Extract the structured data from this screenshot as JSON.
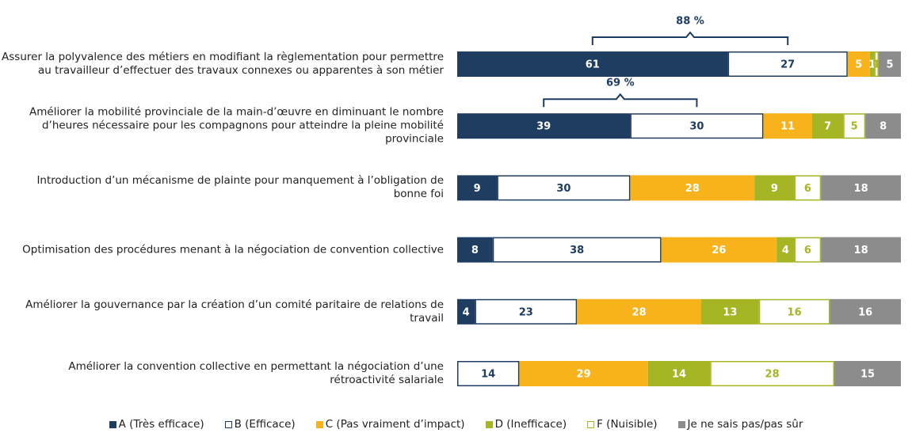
{
  "chart_data": {
    "type": "stacked_bar_horizontal",
    "categories": [
      "Assurer la polyvalence des métiers en modifiant la règlementation pour permettre au travailleur d’effectuer des travaux connexes ou apparentes à son métier",
      "Améliorer la mobilité provinciale de la main-d’œuvre en diminuant le nombre d’heures nécessaire pour les compagnons pour atteindre la pleine mobilité provinciale",
      "Introduction d’un mécanisme de plainte pour manquement à l’obligation de bonne foi",
      "Optimisation des procédures menant à la négociation de convention collective",
      "Améliorer la gouvernance par la création d’un comité paritaire de relations de travail",
      "Améliorer la convention collective en permettant la négociation d’une rétroactivité salariale"
    ],
    "series": [
      {
        "name": "A (Très efficace)",
        "color": "#1f3d61",
        "values": [
          61,
          39,
          9,
          8,
          4,
          null
        ]
      },
      {
        "name": "B (Efficace)",
        "color": "#ffffff",
        "values": [
          27,
          30,
          30,
          38,
          23,
          14
        ]
      },
      {
        "name": "C (Pas vraiment d’impact)",
        "color": "#f8b21c",
        "values": [
          5,
          11,
          28,
          26,
          28,
          29
        ]
      },
      {
        "name": "D (Inefficace)",
        "color": "#a6b523",
        "values": [
          1,
          7,
          9,
          4,
          13,
          14
        ]
      },
      {
        "name": "F (Nuisible)",
        "color": "#ffffff",
        "values": [
          1,
          5,
          6,
          6,
          16,
          28
        ]
      },
      {
        "name": "Je ne sais pas/pas sûr",
        "color": "#8c8c8c",
        "values": [
          5,
          8,
          18,
          18,
          16,
          15
        ]
      }
    ],
    "annotations": [
      {
        "text": "88 %",
        "category": 0
      },
      {
        "text": "69 %",
        "category": 1
      }
    ]
  }
}
